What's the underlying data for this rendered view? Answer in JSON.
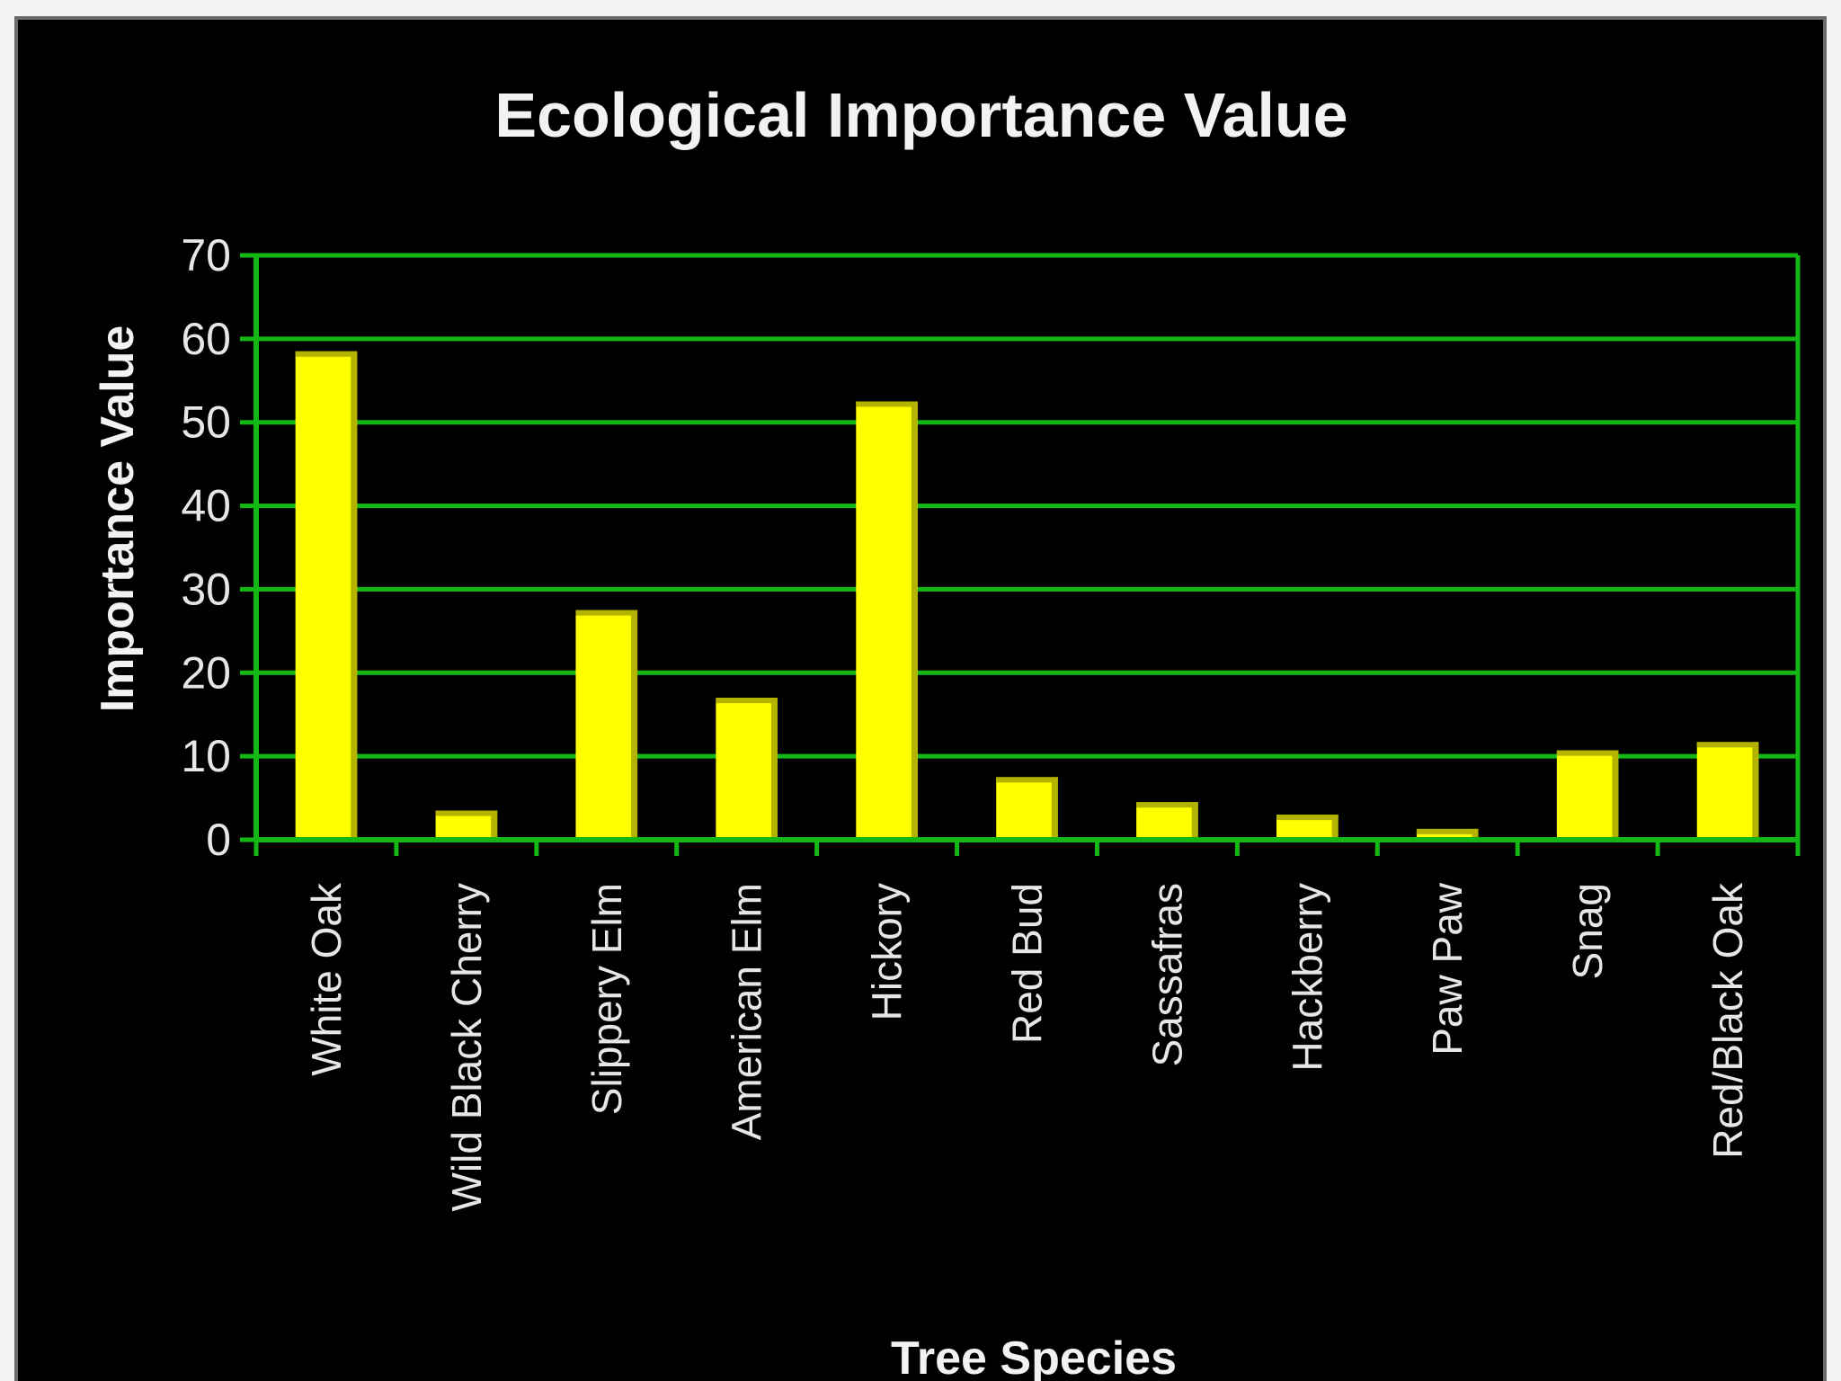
{
  "chart_data": {
    "type": "bar",
    "title": "Ecological Importance Value",
    "xlabel": "Tree Species",
    "ylabel": "Importance Value",
    "categories": [
      "White Oak",
      "Wild Black Cherry",
      "Slippery Elm",
      "American Elm",
      "Hickory",
      "Red Bud",
      "Sassafras",
      "Hackberry",
      "Paw Paw",
      "Snag",
      "Red/Black Oak"
    ],
    "values": [
      58.5,
      3.5,
      27.5,
      17,
      52.5,
      7.5,
      4.5,
      3,
      1.3,
      10.7,
      11.7
    ],
    "ylim": [
      0,
      70
    ],
    "yticks": [
      0,
      10,
      20,
      30,
      40,
      50,
      60,
      70
    ],
    "grid": true,
    "legend": "none",
    "colors": {
      "background": "#000000",
      "bar": "#ffff00",
      "bar_shade": "#b3b300",
      "grid": "#14b814",
      "text": "#f2f2f2"
    }
  }
}
